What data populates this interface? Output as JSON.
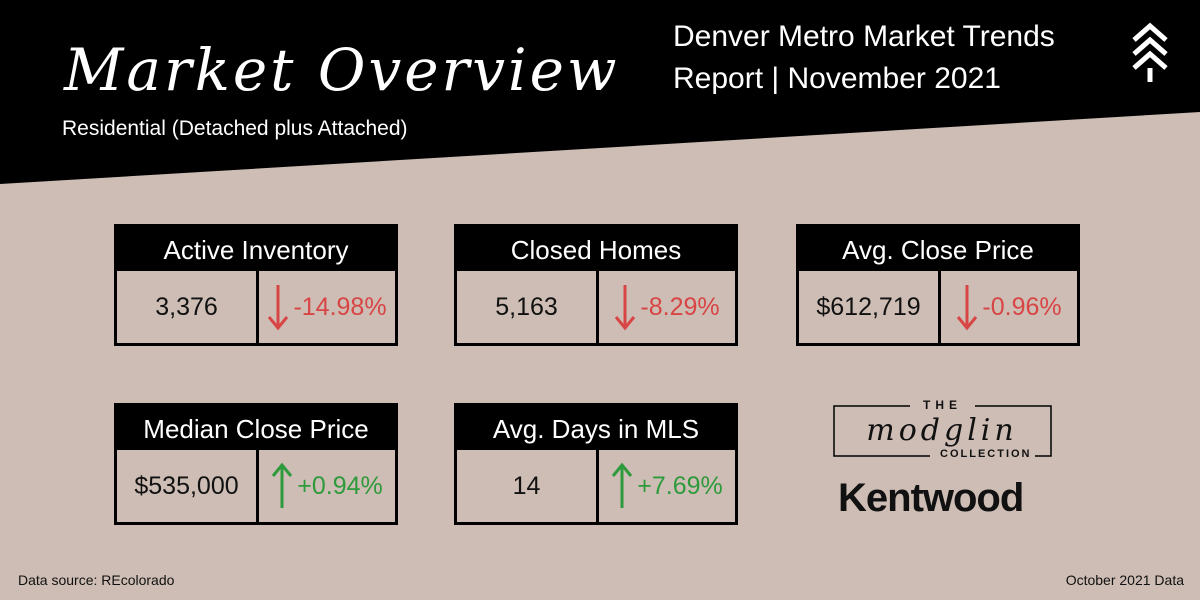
{
  "header": {
    "script_title": "Market Overview",
    "subtitle": "Residential (Detached plus Attached)",
    "report_line1": "Denver Metro Market Trends",
    "report_line2": "Report | November 2021"
  },
  "cards": [
    {
      "title": "Active Inventory",
      "value": "3,376",
      "change": "-14.98%",
      "direction": "down"
    },
    {
      "title": "Closed Homes",
      "value": "5,163",
      "change": "-8.29%",
      "direction": "down"
    },
    {
      "title": "Avg. Close Price",
      "value": "$612,719",
      "change": "-0.96%",
      "direction": "down"
    },
    {
      "title": "Median Close Price",
      "value": "$535,000",
      "change": "+0.94%",
      "direction": "up"
    },
    {
      "title": "Avg. Days in MLS",
      "value": "14",
      "change": "+7.69%",
      "direction": "up"
    }
  ],
  "logo": {
    "the": "THE",
    "script": "modglin",
    "collection": "COLLECTION",
    "brand": "Kentwood"
  },
  "footer": {
    "source": "Data source: REcolorado",
    "date": "October 2021 Data"
  },
  "colors": {
    "background": "#cdbdb4",
    "banner": "#000000",
    "down": "#d84545",
    "up": "#2e9a3c"
  }
}
